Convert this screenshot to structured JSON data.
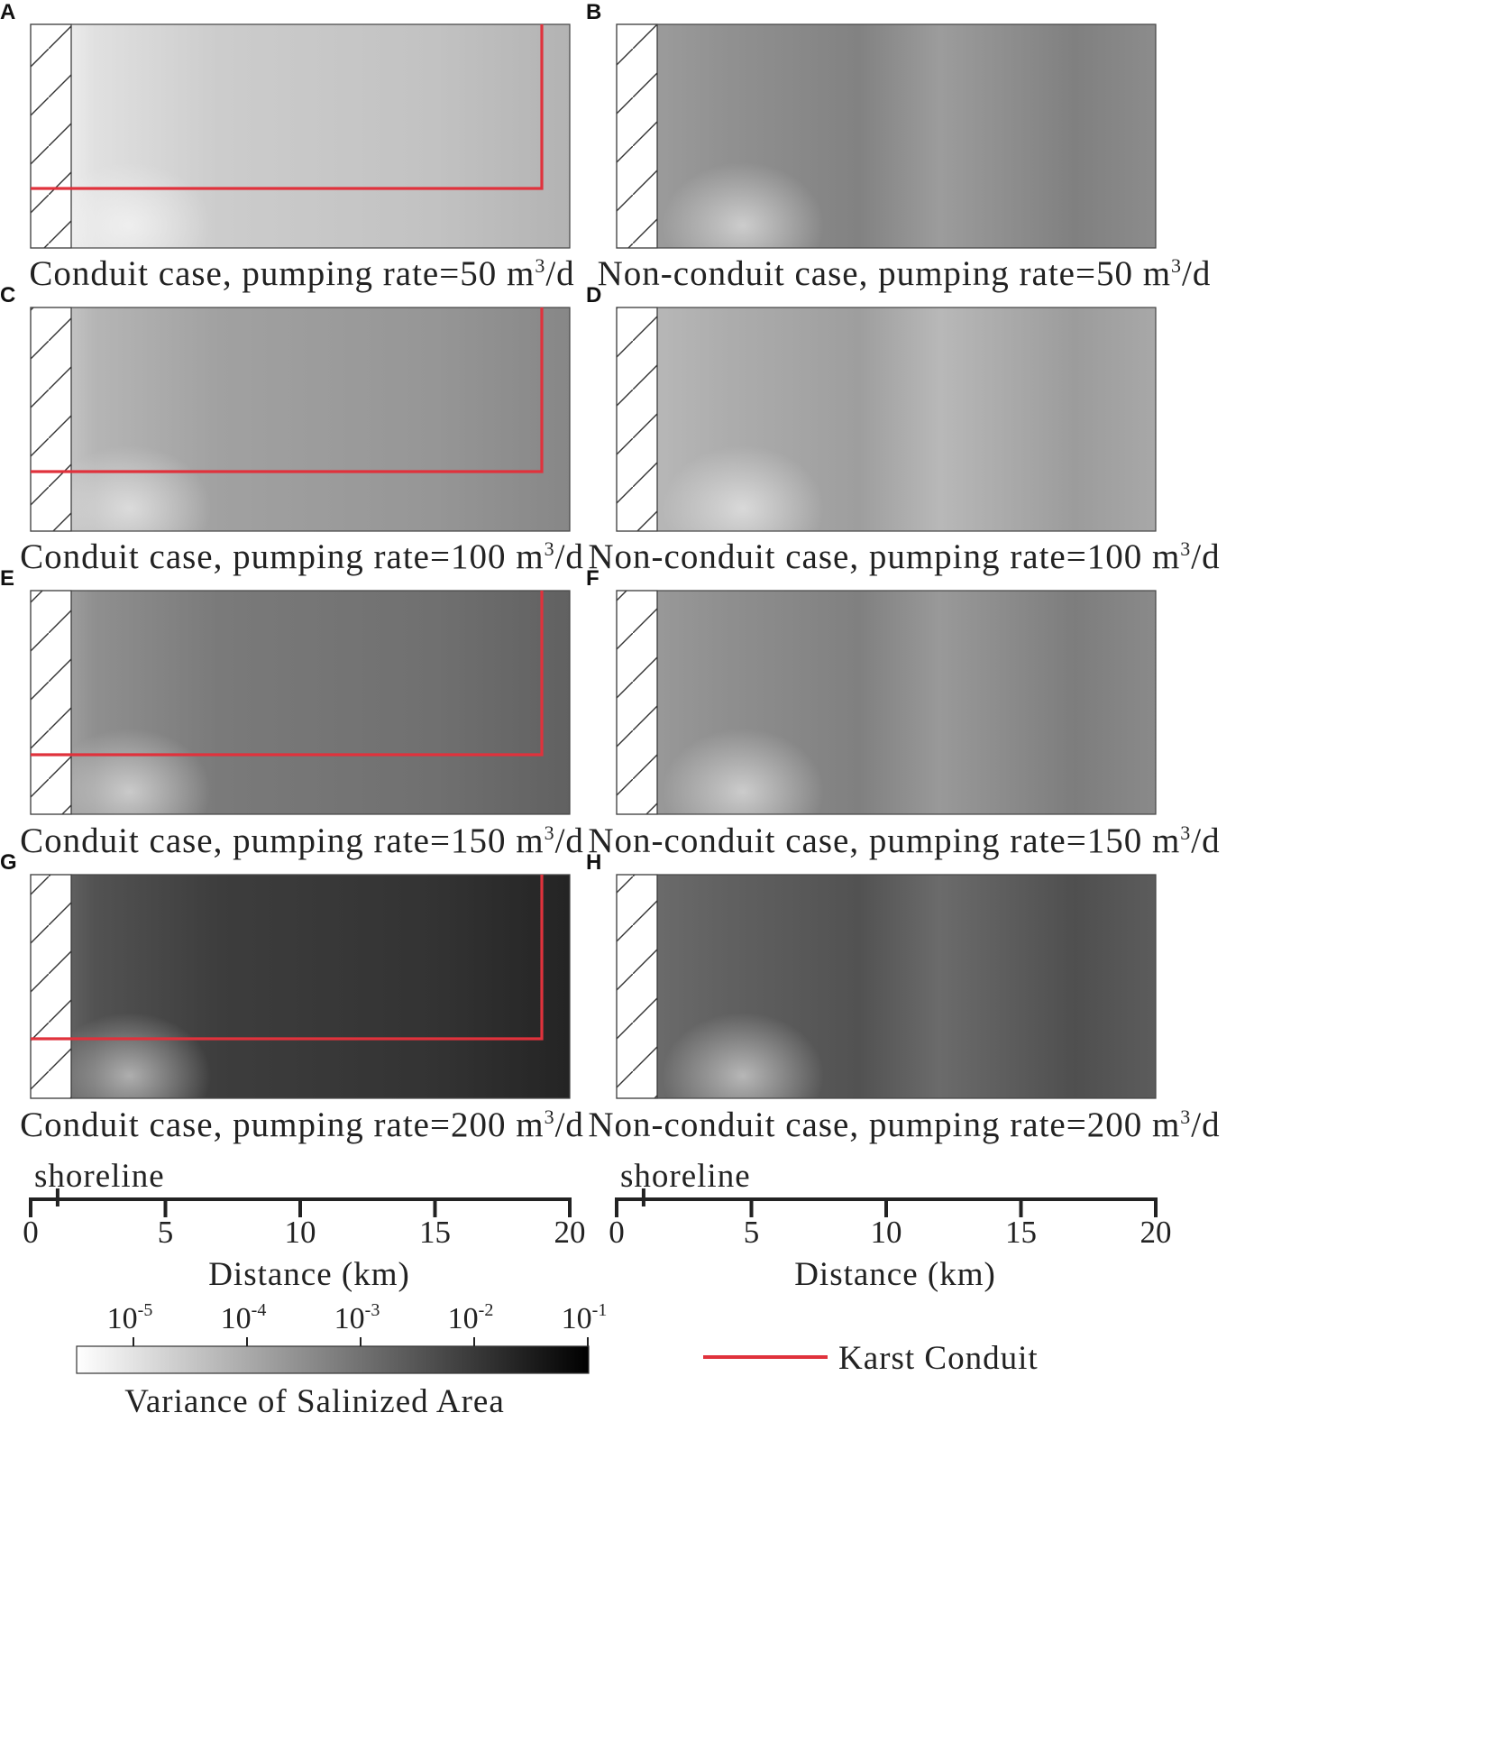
{
  "chart_data": {
    "type": "heatmap",
    "panels": [
      {
        "letter": "A",
        "caption_main": "Conduit case, pumping rate=50 m",
        "caption_sup": "3",
        "caption_tail": "/d",
        "conduit": true,
        "level": 0.2
      },
      {
        "letter": "B",
        "caption_main": "Non-conduit case,  pumping rate=50 m",
        "caption_sup": "3",
        "caption_tail": "/d",
        "conduit": false,
        "level": 0.45
      },
      {
        "letter": "C",
        "caption_main": "Conduit case, pumping rate=100 m",
        "caption_sup": "3",
        "caption_tail": "/d",
        "conduit": true,
        "level": 0.37
      },
      {
        "letter": "D",
        "caption_main": "Non-conduit case,  pumping rate=100 m",
        "caption_sup": "3",
        "caption_tail": "/d",
        "conduit": false,
        "level": 0.34
      },
      {
        "letter": "E",
        "caption_main": "Conduit case, pumping rate=150 m",
        "caption_sup": "3",
        "caption_tail": "/d",
        "conduit": true,
        "level": 0.52
      },
      {
        "letter": "F",
        "caption_main": "Non-conduit case,  pumping rate=150 m",
        "caption_sup": "3",
        "caption_tail": "/d",
        "conduit": false,
        "level": 0.46
      },
      {
        "letter": "G",
        "caption_main": "Conduit case, pumping rate=200 m",
        "caption_sup": "3",
        "caption_tail": "/d",
        "conduit": true,
        "level": 0.76
      },
      {
        "letter": "H",
        "caption_main": "Non-conduit case,  pumping rate=200 m",
        "caption_sup": "3",
        "caption_tail": "/d",
        "conduit": false,
        "level": 0.64
      }
    ],
    "x_axis": {
      "label": "Distance (km)",
      "ticks": [
        0,
        5,
        10,
        15,
        20
      ],
      "range": [
        0,
        20
      ],
      "shoreline_label": "shoreline",
      "shoreline_km": 1
    },
    "colorbar": {
      "label": "Variance of Salinized Area",
      "base": "10",
      "exponents": [
        "-5",
        "-4",
        "-3",
        "-2",
        "-1"
      ],
      "scale": "log",
      "colors": [
        "#ffffff",
        "#000000"
      ]
    },
    "legend": {
      "label": "Karst Conduit",
      "color": "#e0323c"
    }
  }
}
